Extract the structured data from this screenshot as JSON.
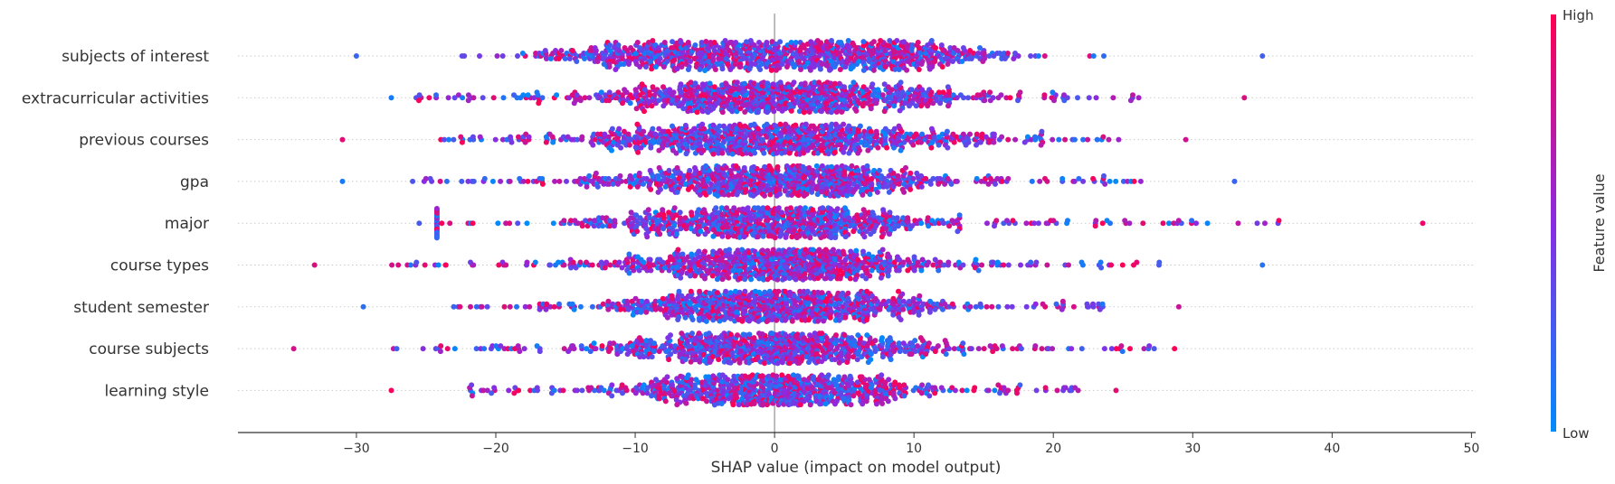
{
  "chart_data": {
    "type": "scatter",
    "xlabel": "SHAP value (impact on model output)",
    "xticks": [
      -30,
      -20,
      -10,
      0,
      10,
      20,
      30,
      40,
      50
    ],
    "xlim": [
      -38.5,
      50.3
    ],
    "features": [
      {
        "label": "subjects of interest",
        "range": [
          -30,
          35
        ],
        "spread": 9.5,
        "n": 900,
        "bimodal": true
      },
      {
        "label": "extracurricular activities",
        "range": [
          -27.5,
          33.7
        ],
        "spread": 7,
        "n": 850,
        "bimodal": false
      },
      {
        "label": "previous courses",
        "range": [
          -31,
          29.5
        ],
        "spread": 7,
        "n": 850,
        "bimodal": false
      },
      {
        "label": "gpa",
        "range": [
          -31,
          33
        ],
        "spread": 6,
        "n": 800,
        "bimodal": false
      },
      {
        "label": "major",
        "range": [
          -25.5,
          46.5
        ],
        "spread": 6,
        "n": 800,
        "bimodal": false
      },
      {
        "label": "course types",
        "range": [
          -33,
          35
        ],
        "spread": 6.5,
        "n": 800,
        "bimodal": false
      },
      {
        "label": "student semester",
        "range": [
          -29.5,
          29
        ],
        "spread": 6,
        "n": 800,
        "bimodal": false
      },
      {
        "label": "course subjects",
        "range": [
          -34.5,
          28.7
        ],
        "spread": 6,
        "n": 800,
        "bimodal": false
      },
      {
        "label": "learning style",
        "range": [
          -27.5,
          24.5
        ],
        "spread": 5.5,
        "n": 750,
        "bimodal": false
      }
    ],
    "colorbar": {
      "label": "Feature value",
      "high_label": "High",
      "low_label": "Low",
      "high_color": "#ff0052",
      "mid_color": "#8a2be2",
      "low_color": "#008bfb"
    },
    "grid": "dotted-horizontal"
  }
}
